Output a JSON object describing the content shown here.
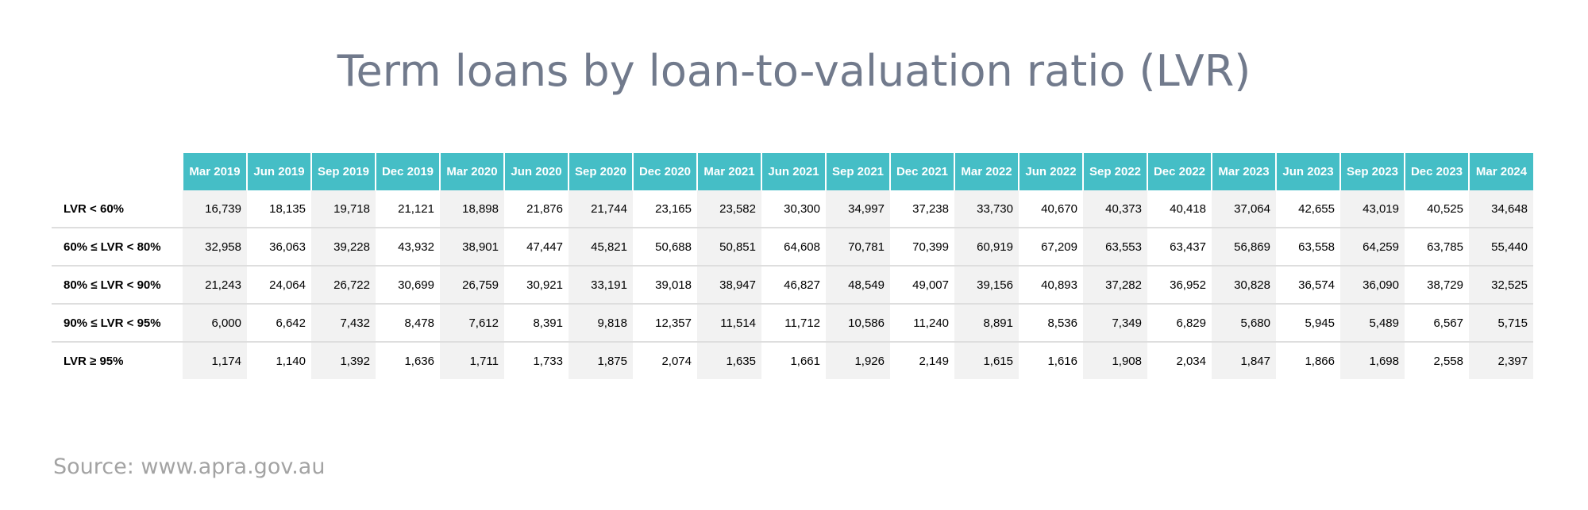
{
  "title": "Term loans by loan-to-valuation ratio (LVR)",
  "source": "Source: www.apra.gov.au",
  "colors": {
    "header_bg": "#45bec6",
    "header_text": "#ffffff",
    "title_text": "#717a8c",
    "source_text": "#a3a3a3",
    "shaded_column": "#f2f2f2",
    "row_divider": "#dedede"
  },
  "chart_data": {
    "type": "table",
    "title": "Term loans by loan-to-valuation ratio (LVR)",
    "columns": [
      "Mar 2019",
      "Jun 2019",
      "Sep 2019",
      "Dec 2019",
      "Mar 2020",
      "Jun 2020",
      "Sep 2020",
      "Dec 2020",
      "Mar 2021",
      "Jun 2021",
      "Sep 2021",
      "Dec 2021",
      "Mar 2022",
      "Jun 2022",
      "Sep 2022",
      "Dec 2022",
      "Mar 2023",
      "Jun 2023",
      "Sep 2023",
      "Dec 2023",
      "Mar 2024"
    ],
    "rows": [
      {
        "label": "LVR < 60%",
        "values": [
          "16,739",
          "18,135",
          "19,718",
          "21,121",
          "18,898",
          "21,876",
          "21,744",
          "23,165",
          "23,582",
          "30,300",
          "34,997",
          "37,238",
          "33,730",
          "40,670",
          "40,373",
          "40,418",
          "37,064",
          "42,655",
          "43,019",
          "40,525",
          "34,648"
        ]
      },
      {
        "label": "60% ≤ LVR < 80%",
        "values": [
          "32,958",
          "36,063",
          "39,228",
          "43,932",
          "38,901",
          "47,447",
          "45,821",
          "50,688",
          "50,851",
          "64,608",
          "70,781",
          "70,399",
          "60,919",
          "67,209",
          "63,553",
          "63,437",
          "56,869",
          "63,558",
          "64,259",
          "63,785",
          "55,440"
        ]
      },
      {
        "label": "80% ≤ LVR < 90%",
        "values": [
          "21,243",
          "24,064",
          "26,722",
          "30,699",
          "26,759",
          "30,921",
          "33,191",
          "39,018",
          "38,947",
          "46,827",
          "48,549",
          "49,007",
          "39,156",
          "40,893",
          "37,282",
          "36,952",
          "30,828",
          "36,574",
          "36,090",
          "38,729",
          "32,525"
        ]
      },
      {
        "label": "90% ≤ LVR < 95%",
        "values": [
          "6,000",
          "6,642",
          "7,432",
          "8,478",
          "7,612",
          "8,391",
          "9,818",
          "12,357",
          "11,514",
          "11,712",
          "10,586",
          "11,240",
          "8,891",
          "8,536",
          "7,349",
          "6,829",
          "5,680",
          "5,945",
          "5,489",
          "6,567",
          "5,715"
        ]
      },
      {
        "label": "LVR ≥ 95%",
        "values": [
          "1,174",
          "1,140",
          "1,392",
          "1,636",
          "1,711",
          "1,733",
          "1,875",
          "2,074",
          "1,635",
          "1,661",
          "1,926",
          "2,149",
          "1,615",
          "1,616",
          "1,908",
          "2,034",
          "1,847",
          "1,866",
          "1,698",
          "2,558",
          "2,397"
        ]
      }
    ]
  }
}
